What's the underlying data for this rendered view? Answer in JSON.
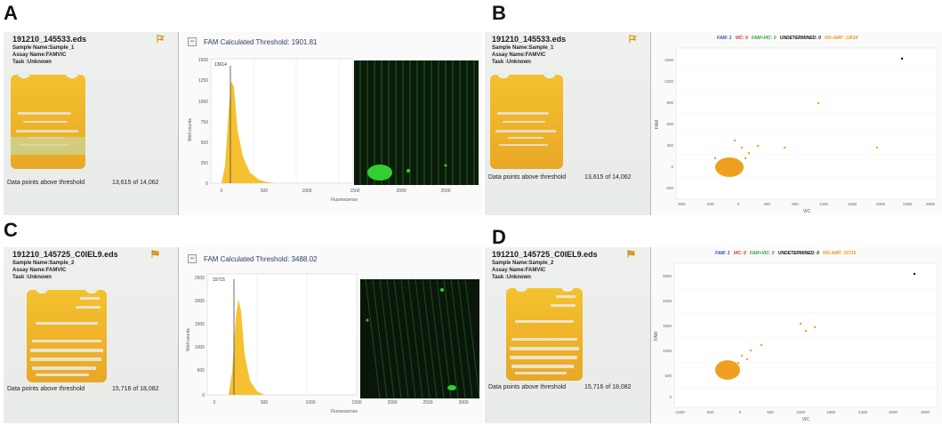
{
  "panels": [
    {
      "letter": "A",
      "file_name": "191210_145533.eds",
      "sample_name": "Sample Name:Sample_1",
      "assay_name": "Assay Name:FAMVIC",
      "task": "Task :Unknown",
      "threshold_label": "Data points above threshold",
      "threshold_value": "13,615 of 14,062",
      "plot_title": "FAM Calculated Threshold: 1901.81",
      "peak_label": "13614",
      "y_axis_label": "Well counts",
      "x_axis_label": "Fluorescence",
      "y_ticks": [
        "1500",
        "1250",
        "1000",
        "750",
        "500",
        "250",
        "0"
      ],
      "x_ticks": [
        "0",
        "500",
        "1000",
        "1500",
        "2000",
        "2500"
      ]
    },
    {
      "letter": "B",
      "file_name": "191210_145533.eds",
      "sample_name": "Sample Name:Sample_1",
      "assay_name": "Assay Name:FAMVIC",
      "task": "Task :Unknown",
      "threshold_label": "Data points above threshold",
      "threshold_value": "13,615 of 14,062",
      "legend": [
        {
          "text": "FAM: 1",
          "color": "#2a4fb0"
        },
        {
          "text": "VIC: 0",
          "color": "#c0302a"
        },
        {
          "text": "FAM+VIC: 0",
          "color": "#3a9a3a"
        },
        {
          "text": "UNDETERMINED: 0",
          "color": "#111111"
        },
        {
          "text": "NO-AMP: 13614",
          "color": "#e0a020"
        }
      ],
      "y_axis_label": "FAM",
      "x_axis_label": "VIC",
      "y_ticks": [
        "1500",
        "1200",
        "900",
        "600",
        "300",
        "0",
        "-300"
      ],
      "x_ticks": [
        "-800",
        "-400",
        "0",
        "400",
        "800",
        "1200",
        "1600",
        "2000",
        "2400",
        "2800"
      ]
    },
    {
      "letter": "C",
      "file_name": "191210_145725_C0IEL9.eds",
      "sample_name": "Sample Name:Sample_2",
      "assay_name": "Assay Name:FAMVIC",
      "task": "Task :Unknown",
      "threshold_label": "Data points above threshold",
      "threshold_value": "15,716 of 18,082",
      "plot_title": "FAM Calculated Threshold: 3488.02",
      "peak_label": "15715",
      "y_axis_label": "Well counts",
      "x_axis_label": "Fluorescence",
      "y_ticks": [
        "2500",
        "2000",
        "1500",
        "1000",
        "500",
        "0"
      ],
      "x_ticks": [
        "0",
        "500",
        "1000",
        "1500",
        "2000",
        "2500",
        "3000"
      ]
    },
    {
      "letter": "D",
      "file_name": "191210_145725_C0IEL9.eds",
      "sample_name": "Sample Name:Sample_2",
      "assay_name": "Assay Name:FAMVIC",
      "task": "Task :Unknown",
      "threshold_label": "Data points above threshold",
      "threshold_value": "15,716 of 18,082",
      "legend": [
        {
          "text": "FAM: 1",
          "color": "#2a4fb0"
        },
        {
          "text": "VIC: 0",
          "color": "#c0302a"
        },
        {
          "text": "FAM+VIC: 0",
          "color": "#3a9a3a"
        },
        {
          "text": "UNDETERMINED: 0",
          "color": "#111111"
        },
        {
          "text": "NO-AMP: 15715",
          "color": "#e0a020"
        }
      ],
      "y_axis_label": "FAM",
      "x_axis_label": "VIC",
      "y_ticks": [
        "2500",
        "2000",
        "1500",
        "1000",
        "500",
        "0"
      ],
      "x_ticks": [
        "-1200",
        "-600",
        "0",
        "600",
        "1200",
        "1800",
        "2400",
        "3000",
        "3600"
      ]
    }
  ],
  "colors": {
    "chip_yellow": "#f0b52a",
    "histogram_bar": "#f5c130",
    "scatter_point": "#f0a020",
    "heatmap_bg": "#0c1a0c",
    "heatmap_dot": "#2fd02f"
  }
}
